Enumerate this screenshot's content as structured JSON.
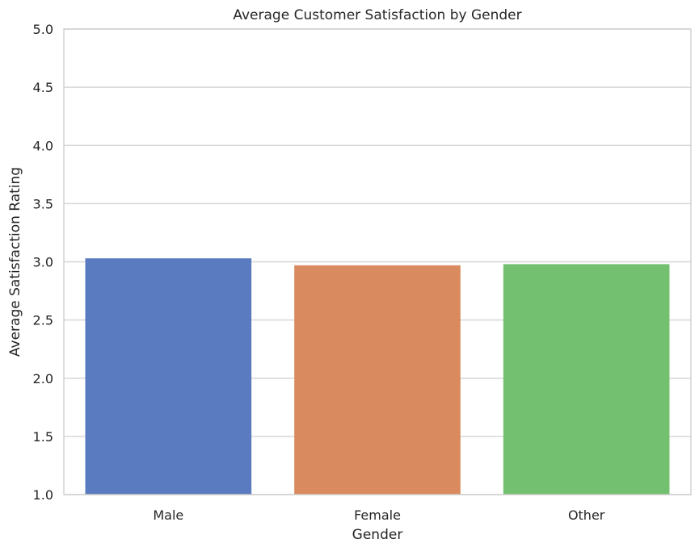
{
  "chart_data": {
    "type": "bar",
    "title": "Average Customer Satisfaction by Gender",
    "xlabel": "Gender",
    "ylabel": "Average Satisfaction Rating",
    "categories": [
      "Male",
      "Female",
      "Other"
    ],
    "values": [
      3.03,
      2.97,
      2.98
    ],
    "ylim": [
      1.0,
      5.0
    ],
    "yticks": [
      "1.0",
      "1.5",
      "2.0",
      "2.5",
      "3.0",
      "3.5",
      "4.0",
      "4.5",
      "5.0"
    ],
    "colors": [
      "#5a7bbf",
      "#d98a5e",
      "#74c071"
    ],
    "grid": "horizontal",
    "legend": "none"
  }
}
